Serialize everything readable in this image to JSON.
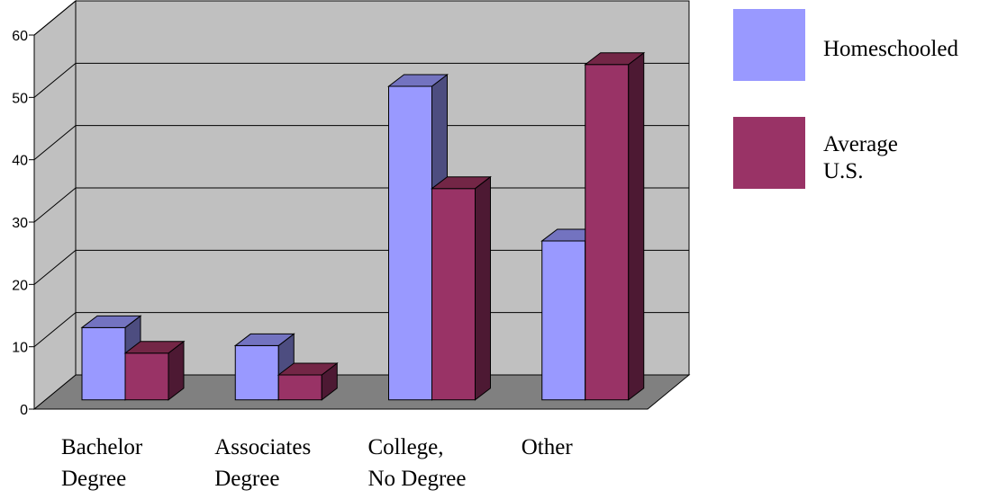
{
  "chart_data": {
    "type": "bar",
    "categories": [
      [
        "Bachelor",
        "Degree"
      ],
      [
        "Associates",
        "Degree"
      ],
      [
        "College,",
        "No Degree"
      ],
      [
        "Other"
      ]
    ],
    "series": [
      {
        "name": "Homeschooled",
        "values": [
          11.6,
          8.7,
          50.3,
          25.5
        ]
      },
      {
        "name": "Average U.S.",
        "values": [
          7.5,
          4,
          33.9,
          53.8
        ]
      }
    ],
    "legend_lines": [
      [
        "Homeschooled"
      ],
      [
        "Average",
        "U.S."
      ]
    ],
    "ylim": [
      0,
      60
    ],
    "yticks": [
      "0",
      "10",
      "20",
      "30",
      "40",
      "50",
      "60"
    ],
    "grid": true,
    "style": "3d",
    "legend_position": "right",
    "colors": {
      "series_front": [
        "#9999FF",
        "#993366"
      ],
      "series_side": [
        "#4D4D80",
        "#4D1933"
      ],
      "series_top": [
        "#7373C0",
        "#732646"
      ],
      "wall": "#C0C0C0",
      "floor": "#808080",
      "axis": "#000000"
    }
  }
}
